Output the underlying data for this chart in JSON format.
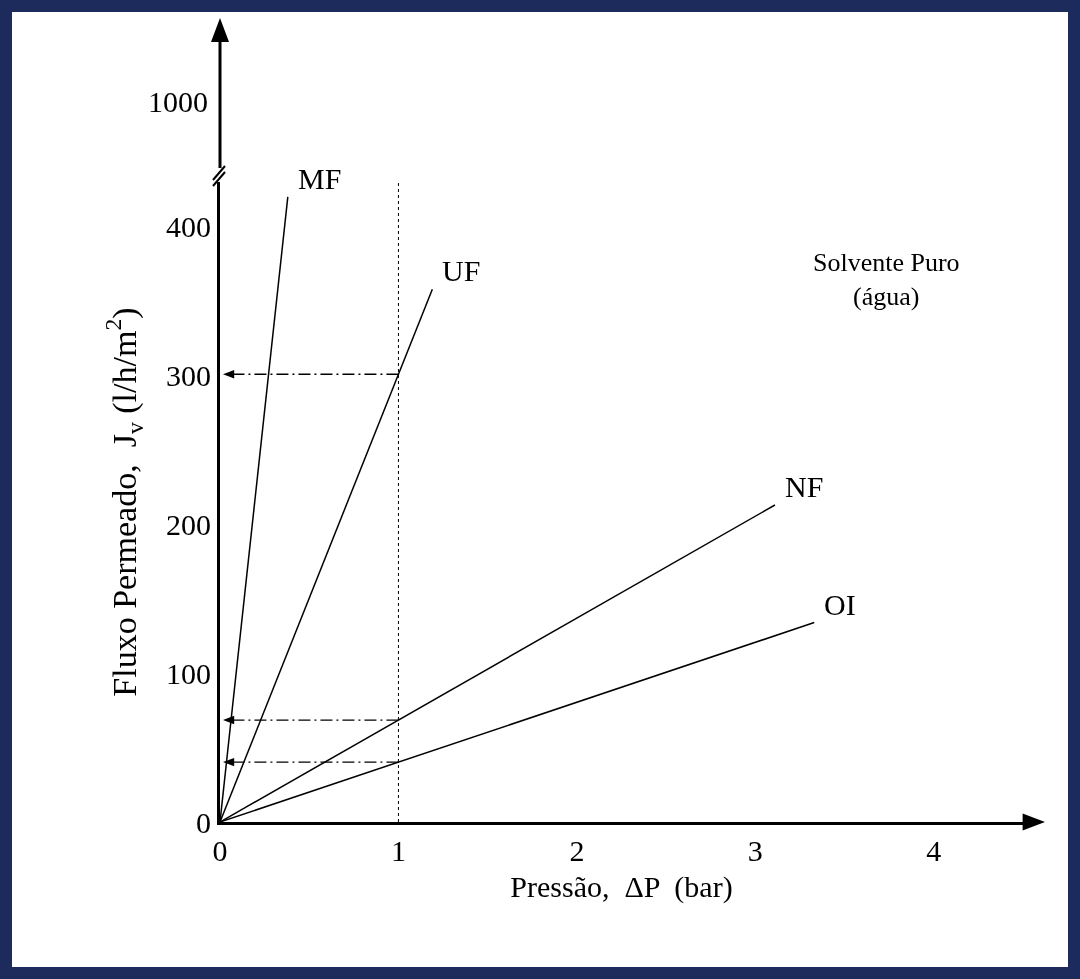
{
  "chart_data": {
    "type": "line",
    "xlabel": "Pressão,  ΔP  (bar)",
    "ylabel": "Fluxo Permeado,  J$_{v}$ (l/h/m$^{2}$)",
    "annotations": [
      "Solvente Puro\n(água)",
      "1000"
    ],
    "series": [
      {
        "name": "MF",
        "x": [
          0,
          0.38
        ],
        "values": [
          0,
          420
        ],
        "color": "#000000",
        "line_style": "solid"
      },
      {
        "name": "UF",
        "x": [
          0,
          1.19
        ],
        "values": [
          0,
          358
        ],
        "color": "#000000",
        "line_style": "solid"
      },
      {
        "name": "NF",
        "x": [
          0,
          3.11
        ],
        "values": [
          0,
          213
        ],
        "color": "#000000",
        "line_style": "solid"
      },
      {
        "name": "OI",
        "x": [
          0,
          3.33
        ],
        "values": [
          0,
          134
        ],
        "color": "#000000",
        "line_style": "solid"
      }
    ],
    "ref_lines": [
      {
        "axis": "x",
        "value": 1,
        "line_style": "dotted",
        "color": "#000000"
      }
    ],
    "xlim": [
      0,
      4.5
    ],
    "ylim": [
      0,
      430
    ],
    "xticks": [
      0,
      1,
      2,
      3,
      4
    ],
    "yticks": [
      0,
      100,
      200,
      300,
      400
    ],
    "grid": false,
    "legend": false,
    "marker": "none"
  }
}
